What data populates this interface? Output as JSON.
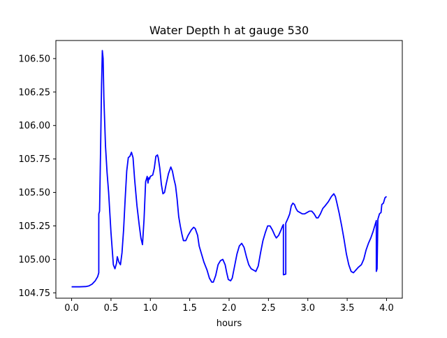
{
  "chart_data": {
    "type": "line",
    "title": "Water Depth h at gauge 530",
    "xlabel": "hours",
    "ylabel": "",
    "xlim": [
      -0.2,
      4.2
    ],
    "ylim": [
      104.71,
      106.635
    ],
    "x_ticks": [
      0.0,
      0.5,
      1.0,
      1.5,
      2.0,
      2.5,
      3.0,
      3.5,
      4.0
    ],
    "x_tick_labels": [
      "0.0",
      "0.5",
      "1.0",
      "1.5",
      "2.0",
      "2.5",
      "3.0",
      "3.5",
      "4.0"
    ],
    "y_ticks": [
      104.75,
      105.0,
      105.25,
      105.5,
      105.75,
      106.0,
      106.25,
      106.5
    ],
    "y_tick_labels": [
      "104.75",
      "105.00",
      "105.25",
      "105.50",
      "105.75",
      "106.00",
      "106.25",
      "106.50"
    ],
    "grid": false,
    "legend": "none",
    "series": [
      {
        "color": "#0000ff",
        "points": [
          [
            0.0,
            104.795
          ],
          [
            0.1,
            104.795
          ],
          [
            0.18,
            104.797
          ],
          [
            0.22,
            104.802
          ],
          [
            0.26,
            104.815
          ],
          [
            0.3,
            104.84
          ],
          [
            0.33,
            104.87
          ],
          [
            0.345,
            104.9
          ],
          [
            0.345,
            105.34
          ],
          [
            0.355,
            105.36
          ],
          [
            0.37,
            105.9
          ],
          [
            0.38,
            106.3
          ],
          [
            0.39,
            106.56
          ],
          [
            0.4,
            106.5
          ],
          [
            0.41,
            106.2
          ],
          [
            0.43,
            105.85
          ],
          [
            0.45,
            105.65
          ],
          [
            0.47,
            105.5
          ],
          [
            0.5,
            105.2
          ],
          [
            0.53,
            104.96
          ],
          [
            0.55,
            104.93
          ],
          [
            0.57,
            104.97
          ],
          [
            0.58,
            105.02
          ],
          [
            0.6,
            104.98
          ],
          [
            0.62,
            104.96
          ],
          [
            0.64,
            105.05
          ],
          [
            0.66,
            105.22
          ],
          [
            0.68,
            105.45
          ],
          [
            0.7,
            105.66
          ],
          [
            0.72,
            105.76
          ],
          [
            0.74,
            105.77
          ],
          [
            0.76,
            105.8
          ],
          [
            0.78,
            105.76
          ],
          [
            0.8,
            105.6
          ],
          [
            0.83,
            105.4
          ],
          [
            0.86,
            105.25
          ],
          [
            0.88,
            105.16
          ],
          [
            0.9,
            105.11
          ],
          [
            0.92,
            105.3
          ],
          [
            0.94,
            105.58
          ],
          [
            0.96,
            105.62
          ],
          [
            0.97,
            105.57
          ],
          [
            0.98,
            105.61
          ],
          [
            0.99,
            105.6
          ],
          [
            1.0,
            105.62
          ],
          [
            1.03,
            105.63
          ],
          [
            1.05,
            105.68
          ],
          [
            1.07,
            105.77
          ],
          [
            1.09,
            105.78
          ],
          [
            1.1,
            105.76
          ],
          [
            1.12,
            105.68
          ],
          [
            1.14,
            105.56
          ],
          [
            1.16,
            105.49
          ],
          [
            1.18,
            105.5
          ],
          [
            1.2,
            105.56
          ],
          [
            1.23,
            105.64
          ],
          [
            1.26,
            105.69
          ],
          [
            1.28,
            105.66
          ],
          [
            1.3,
            105.6
          ],
          [
            1.32,
            105.55
          ],
          [
            1.34,
            105.45
          ],
          [
            1.36,
            105.32
          ],
          [
            1.38,
            105.25
          ],
          [
            1.4,
            105.19
          ],
          [
            1.42,
            105.14
          ],
          [
            1.45,
            105.14
          ],
          [
            1.48,
            105.18
          ],
          [
            1.52,
            105.22
          ],
          [
            1.55,
            105.24
          ],
          [
            1.57,
            105.23
          ],
          [
            1.6,
            105.18
          ],
          [
            1.62,
            105.1
          ],
          [
            1.65,
            105.04
          ],
          [
            1.68,
            104.98
          ],
          [
            1.72,
            104.92
          ],
          [
            1.75,
            104.86
          ],
          [
            1.78,
            104.83
          ],
          [
            1.8,
            104.83
          ],
          [
            1.83,
            104.88
          ],
          [
            1.86,
            104.96
          ],
          [
            1.89,
            104.99
          ],
          [
            1.92,
            105.0
          ],
          [
            1.95,
            104.96
          ],
          [
            1.97,
            104.9
          ],
          [
            1.99,
            104.85
          ],
          [
            2.02,
            104.84
          ],
          [
            2.04,
            104.86
          ],
          [
            2.07,
            104.95
          ],
          [
            2.1,
            105.04
          ],
          [
            2.13,
            105.1
          ],
          [
            2.16,
            105.12
          ],
          [
            2.19,
            105.09
          ],
          [
            2.22,
            105.02
          ],
          [
            2.25,
            104.96
          ],
          [
            2.28,
            104.93
          ],
          [
            2.31,
            104.92
          ],
          [
            2.34,
            104.91
          ],
          [
            2.37,
            104.95
          ],
          [
            2.4,
            105.05
          ],
          [
            2.43,
            105.14
          ],
          [
            2.46,
            105.2
          ],
          [
            2.49,
            105.25
          ],
          [
            2.52,
            105.25
          ],
          [
            2.55,
            105.22
          ],
          [
            2.58,
            105.18
          ],
          [
            2.6,
            105.16
          ],
          [
            2.63,
            105.18
          ],
          [
            2.66,
            105.22
          ],
          [
            2.68,
            105.25
          ],
          [
            2.69,
            105.26
          ],
          [
            2.69,
            104.885
          ],
          [
            2.72,
            104.89
          ],
          [
            2.72,
            105.27
          ],
          [
            2.75,
            105.31
          ],
          [
            2.77,
            105.34
          ],
          [
            2.79,
            105.4
          ],
          [
            2.81,
            105.42
          ],
          [
            2.83,
            105.41
          ],
          [
            2.85,
            105.38
          ],
          [
            2.87,
            105.36
          ],
          [
            2.9,
            105.35
          ],
          [
            2.93,
            105.34
          ],
          [
            2.96,
            105.34
          ],
          [
            2.99,
            105.35
          ],
          [
            3.02,
            105.36
          ],
          [
            3.05,
            105.36
          ],
          [
            3.08,
            105.34
          ],
          [
            3.11,
            105.31
          ],
          [
            3.13,
            105.31
          ],
          [
            3.16,
            105.34
          ],
          [
            3.19,
            105.38
          ],
          [
            3.22,
            105.4
          ],
          [
            3.26,
            105.43
          ],
          [
            3.3,
            105.47
          ],
          [
            3.33,
            105.49
          ],
          [
            3.35,
            105.47
          ],
          [
            3.37,
            105.42
          ],
          [
            3.4,
            105.34
          ],
          [
            3.43,
            105.25
          ],
          [
            3.46,
            105.15
          ],
          [
            3.49,
            105.04
          ],
          [
            3.52,
            104.96
          ],
          [
            3.55,
            104.91
          ],
          [
            3.58,
            104.9
          ],
          [
            3.61,
            104.92
          ],
          [
            3.64,
            104.94
          ],
          [
            3.68,
            104.96
          ],
          [
            3.71,
            105.0
          ],
          [
            3.74,
            105.07
          ],
          [
            3.77,
            105.12
          ],
          [
            3.8,
            105.16
          ],
          [
            3.83,
            105.21
          ],
          [
            3.86,
            105.27
          ],
          [
            3.87,
            105.29
          ],
          [
            3.87,
            104.91
          ],
          [
            3.88,
            104.93
          ],
          [
            3.89,
            105.3
          ],
          [
            3.91,
            105.34
          ],
          [
            3.93,
            105.35
          ],
          [
            3.94,
            105.41
          ],
          [
            3.96,
            105.42
          ],
          [
            3.98,
            105.46
          ],
          [
            4.0,
            105.47
          ]
        ]
      }
    ]
  }
}
